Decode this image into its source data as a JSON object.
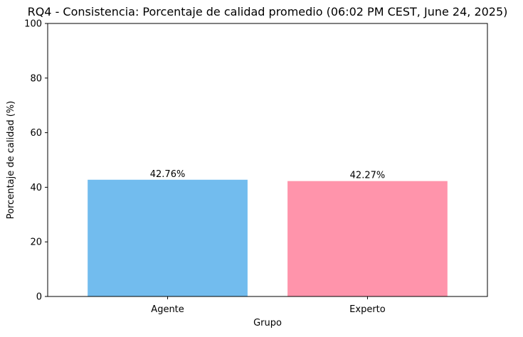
{
  "chart_data": {
    "type": "bar",
    "title": "RQ4 - Consistencia: Porcentaje de calidad promedio (06:02 PM CEST, June 24, 2025)",
    "xlabel": "Grupo",
    "ylabel": "Porcentaje de calidad (%)",
    "categories": [
      "Agente",
      "Experto"
    ],
    "values": [
      42.76,
      42.27
    ],
    "data_labels": [
      "42.76%",
      "42.27%"
    ],
    "colors": [
      "#72bcee",
      "#ff94ab"
    ],
    "ylim": [
      0,
      100
    ],
    "yticks": [
      0,
      20,
      40,
      60,
      80,
      100
    ],
    "grid": false,
    "legend": "none"
  }
}
